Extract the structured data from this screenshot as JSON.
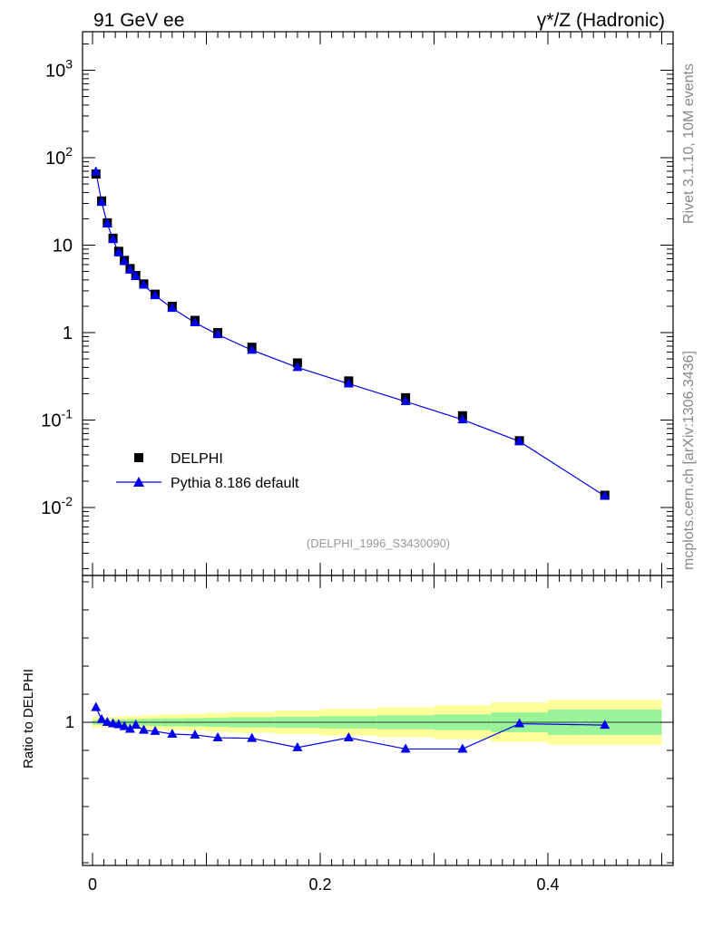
{
  "header": {
    "left": "91 GeV ee",
    "right": "γ*/Z (Hadronic)"
  },
  "side_labels": {
    "rivet": "Rivet 3.1.10,  10M events",
    "mcplots": "mcplots.cern.ch [arXiv:1306.3436]"
  },
  "analysis_ref": "(DELPHI_1996_S3430090)",
  "ratio_ylabel": "Ratio to DELPHI",
  "colors": {
    "data": "#000000",
    "mc": "#0000ee",
    "band_inner": "#99f399",
    "band_outer": "#ffff99"
  },
  "chart_data": [
    {
      "type": "scatter",
      "panel": "main",
      "yscale": "log",
      "xlim": [
        0,
        0.5
      ],
      "ylim": [
        0.002,
        2500
      ],
      "ytick_labels": [
        "10^-2",
        "10^-1",
        "1",
        "10",
        "10^2",
        "10^3"
      ],
      "legend": "middle-left",
      "series": [
        {
          "name": "DELPHI",
          "marker": "square",
          "x": [
            0.003,
            0.008,
            0.013,
            0.018,
            0.023,
            0.028,
            0.033,
            0.038,
            0.045,
            0.055,
            0.07,
            0.09,
            0.11,
            0.14,
            0.18,
            0.225,
            0.275,
            0.325,
            0.375,
            0.45
          ],
          "y": [
            65,
            32,
            18,
            12,
            8.5,
            6.7,
            5.4,
            4.5,
            3.6,
            2.75,
            2.0,
            1.38,
            1.0,
            0.68,
            0.45,
            0.28,
            0.18,
            0.112,
            0.058,
            0.0138
          ]
        },
        {
          "name": "Pythia 8.186 default",
          "marker": "triangle",
          "line": true,
          "x": [
            0.003,
            0.008,
            0.013,
            0.018,
            0.023,
            0.028,
            0.033,
            0.038,
            0.045,
            0.055,
            0.07,
            0.09,
            0.11,
            0.14,
            0.18,
            0.225,
            0.275,
            0.325,
            0.375,
            0.45
          ],
          "y": [
            69,
            31,
            17.5,
            11.6,
            8.2,
            6.5,
            5.2,
            4.4,
            3.5,
            2.65,
            1.9,
            1.3,
            0.95,
            0.63,
            0.4,
            0.26,
            0.163,
            0.101,
            0.057,
            0.0135
          ]
        }
      ]
    },
    {
      "type": "line",
      "panel": "ratio",
      "xlim": [
        0,
        0.5
      ],
      "ylim": [
        0.5,
        1.5
      ],
      "xtick_labels": [
        "0",
        "0.2",
        "0.4"
      ],
      "ytick_labels": [
        "1"
      ],
      "ylabel": "Ratio to DELPHI",
      "bands": {
        "x_edges": [
          0,
          0.005,
          0.01,
          0.015,
          0.02,
          0.025,
          0.03,
          0.035,
          0.04,
          0.05,
          0.06,
          0.08,
          0.1,
          0.12,
          0.16,
          0.2,
          0.25,
          0.3,
          0.35,
          0.4,
          0.5
        ],
        "inner_half": [
          0.008,
          0.008,
          0.008,
          0.009,
          0.01,
          0.01,
          0.011,
          0.011,
          0.012,
          0.013,
          0.014,
          0.015,
          0.016,
          0.018,
          0.02,
          0.022,
          0.025,
          0.028,
          0.035,
          0.045
        ],
        "outer_half": [
          0.02,
          0.018,
          0.018,
          0.019,
          0.02,
          0.021,
          0.022,
          0.023,
          0.024,
          0.026,
          0.028,
          0.03,
          0.033,
          0.037,
          0.042,
          0.047,
          0.053,
          0.06,
          0.07,
          0.08
        ]
      },
      "series": [
        {
          "name": "Pythia 8.186 default",
          "marker": "triangle",
          "x": [
            0.003,
            0.008,
            0.013,
            0.018,
            0.023,
            0.028,
            0.033,
            0.038,
            0.045,
            0.055,
            0.07,
            0.09,
            0.11,
            0.14,
            0.18,
            0.225,
            0.275,
            0.325,
            0.375,
            0.45
          ],
          "y": [
            1.053,
            1.01,
            1.0,
            0.995,
            0.992,
            0.985,
            0.976,
            0.99,
            0.972,
            0.968,
            0.958,
            0.955,
            0.945,
            0.943,
            0.91,
            0.945,
            0.905,
            0.905,
            0.995,
            0.99
          ]
        }
      ]
    }
  ]
}
